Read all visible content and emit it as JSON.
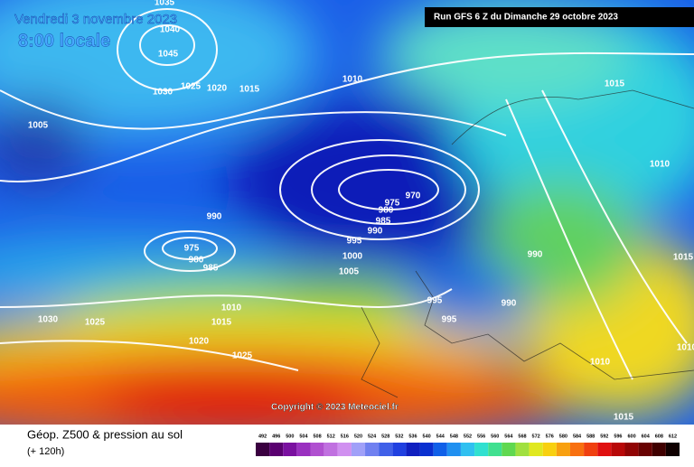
{
  "header": {
    "date": "Vendredi 3 novembre 2023",
    "local_time": "8:00 locale",
    "run": "Run GFS 6 Z du Dimanche 29 octobre 2023"
  },
  "isobar_labels": [
    "1035",
    "1040",
    "1045",
    "1030",
    "1025",
    "1020",
    "1015",
    "1010",
    "1015",
    "1005",
    "1010",
    "970",
    "975",
    "980",
    "985",
    "990",
    "990",
    "975",
    "980",
    "985",
    "995",
    "1000",
    "1005",
    "990",
    "995",
    "995",
    "990",
    "1015",
    "1010",
    "1015",
    "1030",
    "1025",
    "1020",
    "1025",
    "1010",
    "1010",
    "1015"
  ],
  "copyright": "Copyright © 2023 Meteociel.fr",
  "footer": {
    "title": "Géop. Z500 & pression au sol",
    "lead_time": "(+ 120h)"
  },
  "legend_scale": [
    492,
    496,
    500,
    504,
    508,
    512,
    516,
    520,
    524,
    528,
    532,
    536,
    540,
    544,
    548,
    552,
    556,
    560,
    564,
    568,
    572,
    576,
    580,
    584,
    588,
    592,
    596,
    600,
    604,
    608,
    612
  ]
}
